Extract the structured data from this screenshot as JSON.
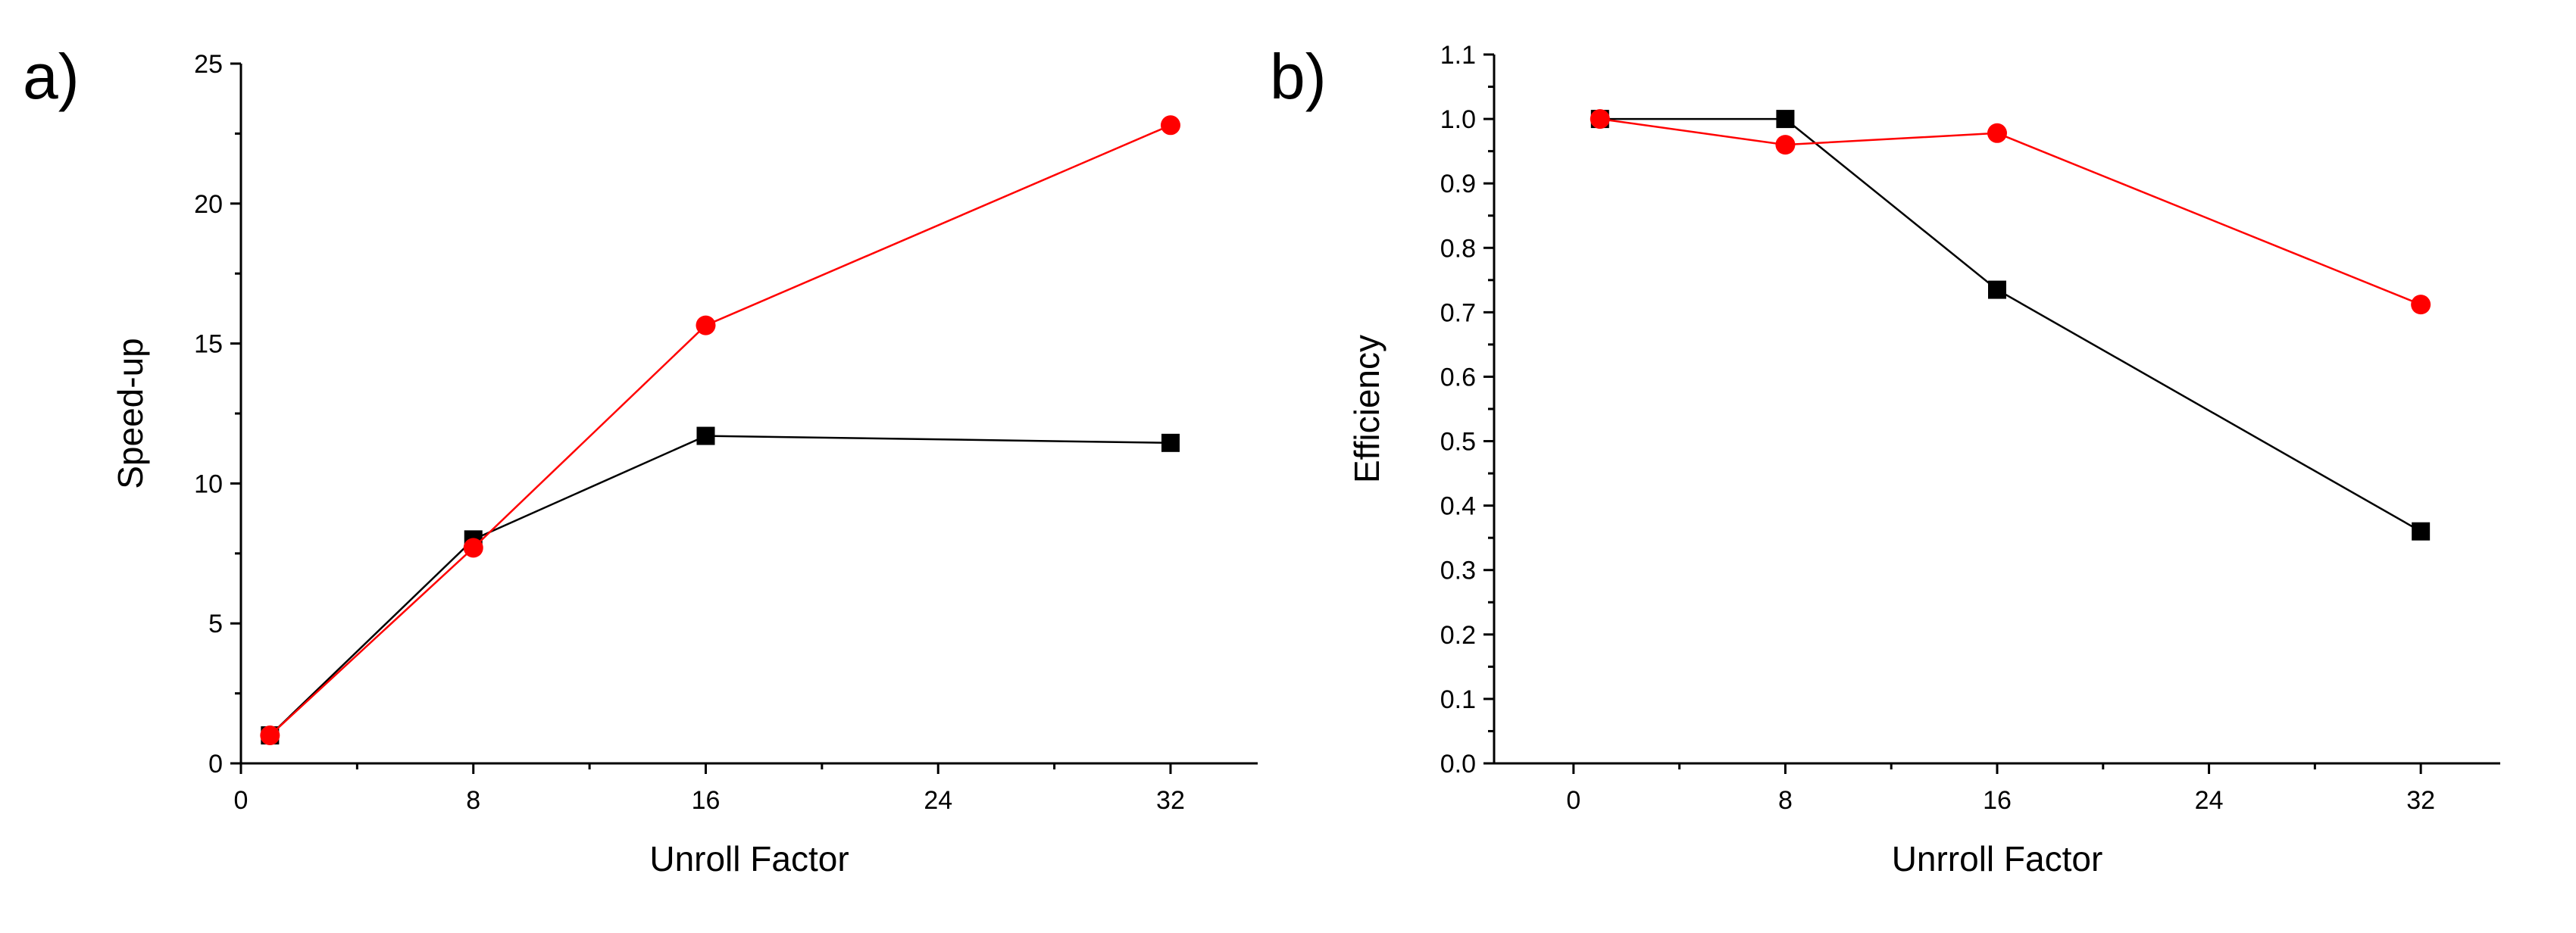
{
  "chart_data": [
    {
      "panel": "a)",
      "type": "line",
      "xlabel": "Unroll Factor",
      "ylabel": "Speed-up",
      "xlim": [
        0,
        35
      ],
      "ylim": [
        0,
        25
      ],
      "xticks": [
        0,
        8,
        16,
        24,
        32
      ],
      "yticks": [
        0,
        5,
        10,
        15,
        20,
        25
      ],
      "series": [
        {
          "color": "#000000",
          "marker": "square",
          "x": [
            1,
            8,
            16,
            32
          ],
          "y": [
            1.0,
            8.0,
            11.7,
            11.45
          ]
        },
        {
          "color": "#ff0000",
          "marker": "circle",
          "x": [
            1,
            8,
            16,
            32
          ],
          "y": [
            1.0,
            7.7,
            15.65,
            22.8
          ]
        }
      ]
    },
    {
      "panel": "b)",
      "type": "line",
      "xlabel": "Unrroll Factor",
      "ylabel": "Efficiency",
      "xlim": [
        -3,
        35
      ],
      "ylim": [
        0.0,
        1.1
      ],
      "xticks": [
        0,
        8,
        16,
        24,
        32
      ],
      "yticks": [
        0.0,
        0.1,
        0.2,
        0.3,
        0.4,
        0.5,
        0.6,
        0.7,
        0.8,
        0.9,
        1.0,
        1.1
      ],
      "ytick_labels": [
        "0.0",
        "0.1",
        "0.2",
        "0.3",
        "0.4",
        "0.5",
        "0.6",
        "0.7",
        "0.8",
        "0.9",
        "1.0",
        "1.1"
      ],
      "series": [
        {
          "color": "#000000",
          "marker": "square",
          "x": [
            1,
            8,
            16,
            32
          ],
          "y": [
            1.0,
            1.0,
            0.735,
            0.36
          ]
        },
        {
          "color": "#ff0000",
          "marker": "circle",
          "x": [
            1,
            8,
            16,
            32
          ],
          "y": [
            1.0,
            0.96,
            0.978,
            0.712
          ]
        }
      ]
    }
  ]
}
